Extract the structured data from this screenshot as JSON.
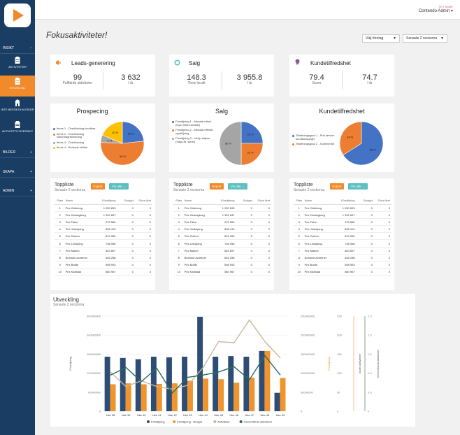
{
  "sidebar": {
    "sections": [
      {
        "label": "INSIKT",
        "toggle": "−"
      },
      {
        "label": "BILDER",
        "toggle": "+"
      },
      {
        "label": "SKAPA",
        "toggle": "+"
      },
      {
        "label": "ADMIN",
        "toggle": "+"
      }
    ],
    "items": [
      {
        "label": "AKTIVITETER",
        "icon": "clipboard-icon",
        "active": false
      },
      {
        "label": "NYCKELTAL",
        "icon": "clipboard-icon",
        "active": true
      },
      {
        "label": "INTE BESÖKTA BUTIKER",
        "icon": "shop-icon",
        "active": false
      },
      {
        "label": "AKTIVITETS-ÖVERSIKT",
        "icon": "clipboard-icon",
        "active": false
      }
    ]
  },
  "header": {
    "company": "SET NAME",
    "user": "Contendo Admin ▾"
  },
  "page": {
    "title": "Fokusaktiviteter!"
  },
  "filters": {
    "company": "Välj företag",
    "period": "Senaste 2 veckorna"
  },
  "kpis": [
    {
      "title": "Leads-generering",
      "icon": "megaphone-icon",
      "left_value": "99",
      "left_label": "Fullfärde aktiviteter",
      "right_value": "3 632",
      "right_label": "I år"
    },
    {
      "title": "Salg",
      "icon": "clock-icon",
      "left_value": "148.3",
      "left_label": "Timer brukt",
      "right_value": "3 955.8",
      "right_label": "I år"
    },
    {
      "title": "Kundetilfredshet",
      "icon": "award-icon",
      "left_value": "79.4",
      "left_label": "Score",
      "right_value": "74.7",
      "right_label": "I år"
    }
  ],
  "pies": [
    {
      "title": "Prospecing",
      "slices": [
        {
          "label": "Items 1 - Överlästning kundbas",
          "value": 25,
          "color": "#4472c4",
          "text": "25 %"
        },
        {
          "label": "Items 2 - Överlästning sökindragrsberkning",
          "value": 56,
          "color": "#ed7d31",
          "text": "56 %"
        },
        {
          "label": "Items 3 - Överlästning",
          "value": 0,
          "color": "#a5a5a5",
          "text": ""
        },
        {
          "label": "Items 4 - Ändrade skillad",
          "value": 6,
          "color": "#a5a5a5",
          "text": "6 %"
        },
        {
          "label": "",
          "value": 20,
          "color": "#ffc000",
          "text": "20 %"
        }
      ]
    },
    {
      "title": "Salg",
      "slices": [
        {
          "label": "Försäljning 1 - Minskat utbud (Nya mötes sessiel)",
          "value": 25,
          "color": "#4472c4",
          "text": "25 %"
        },
        {
          "label": "Försäljning 2 - Minskat effektiv uppföljning",
          "value": 25,
          "color": "#ed7d31",
          "text": "25 %"
        },
        {
          "label": "Försäljning 3 - Inköp säljare (Sägs åt- synkt)",
          "value": 50,
          "color": "#a5a5a5",
          "text": "50 %"
        }
      ]
    },
    {
      "title": "Kundetilfredshet",
      "slices": [
        {
          "label": "Tilldelningsgrad 1 - Pris service kundkampanjer",
          "value": 66,
          "color": "#4472c4",
          "text": "66 %"
        },
        {
          "label": "Tilldelningsgrad 2 - Sortimentet",
          "value": 34,
          "color": "#ed7d31",
          "text": "34 %"
        }
      ]
    }
  ],
  "toplists": [
    {
      "title": "Toppliste",
      "subtitle": "Senaste 2 veckorna",
      "export": "Export",
      "view": "Vis alle →"
    },
    {
      "title": "Toppliste",
      "subtitle": "Senaste 2 veckorna",
      "export": "Export",
      "view": "Vis alle →"
    },
    {
      "title": "Toppliste",
      "subtitle": "Senaste 2 veckorna",
      "export": "Export",
      "view": "Vis alle →"
    }
  ],
  "toplist_headers": [
    "Plats",
    "Namn",
    "Försäljning",
    "Budget",
    "Förra året"
  ],
  "toplist_rows": [
    [
      "1",
      "Prix Göteborg",
      "1 930 893",
      "0",
      "0"
    ],
    [
      "2",
      "Prix Helsingborg",
      "1 332 847",
      "0",
      "0"
    ],
    [
      "3",
      "Prix Falun",
      "975 560",
      "0",
      "0"
    ],
    [
      "4",
      "Prix Jönköping",
      "838 413",
      "0",
      "0"
    ],
    [
      "5",
      "Prix Örebro",
      "819 950",
      "0",
      "0"
    ],
    [
      "6",
      "Prix Linköping",
      "738 956",
      "0",
      "0"
    ],
    [
      "7",
      "Prix Malmö",
      "663 697",
      "0",
      "0"
    ],
    [
      "8",
      "Boxtand avarener",
      "646 288",
      "0",
      "0"
    ],
    [
      "9",
      "Prix Borås",
      "598 993",
      "0",
      "0"
    ],
    [
      "10",
      "Prix Karlstad",
      "580 967",
      "0",
      "0"
    ]
  ],
  "chart_data": {
    "type": "bar",
    "title": "Utveckling",
    "subtitle": "Senaste 2 veckorna",
    "ylabel": "Försäljning",
    "y2label": "Försäljning",
    "y3label": "Andel aktiviteter",
    "y4label": "Genomförda aktiviteter",
    "categories": [
      "Uke 38",
      "Uke 39",
      "Uke 40",
      "Uke 41",
      "Uke 42",
      "Uke 43",
      "Uke 44",
      "Uke 45",
      "Uke 46",
      "Uke 47",
      "Uke 48",
      "Uke 49"
    ],
    "ylim": [
      0,
      300000000
    ],
    "y2lim": [
      0,
      250000000
    ],
    "y3lim": [
      0,
      250
    ],
    "yticks": [
      "0",
      "60000000",
      "120000000",
      "180000000",
      "240000000",
      "300000000"
    ],
    "y2ticks": [
      "0",
      "50000000",
      "100000000",
      "150000000",
      "200000000",
      "250000000"
    ],
    "y3ticks": [
      "0",
      "50",
      "100",
      "150",
      "200",
      "250"
    ],
    "y4ticks": [
      "0",
      "0.5",
      "1.0",
      "1.5",
      "2.0",
      "2.5"
    ],
    "series": [
      {
        "name": "Försäljning",
        "kind": "bar",
        "axis": "y",
        "color": "#2e4d75",
        "values": [
          172000000,
          168000000,
          164000000,
          172000000,
          170000000,
          172000000,
          298000000,
          172000000,
          174000000,
          172000000,
          190000000,
          58000000
        ]
      },
      {
        "name": "Försäljning - Budget",
        "kind": "bar",
        "axis": "y",
        "color": "#f0952d",
        "values": [
          85000000,
          88000000,
          85000000,
          86000000,
          88000000,
          96000000,
          103000000,
          101000000,
          90000000,
          106000000,
          190000000,
          105000000
        ]
      },
      {
        "name": "Aktiviteter",
        "kind": "line",
        "axis": "y3",
        "color": "#c8b89a",
        "values": [
          103,
          65,
          80,
          65,
          58,
          68,
          115,
          183,
          180,
          240,
          183,
          140
        ]
      },
      {
        "name": "Genomförda aktiviteter",
        "kind": "line",
        "axis": "y3",
        "color": "#2a6b5c",
        "values": [
          95,
          115,
          78,
          113,
          48,
          89,
          95,
          103,
          117,
          83,
          146,
          95
        ]
      }
    ]
  }
}
